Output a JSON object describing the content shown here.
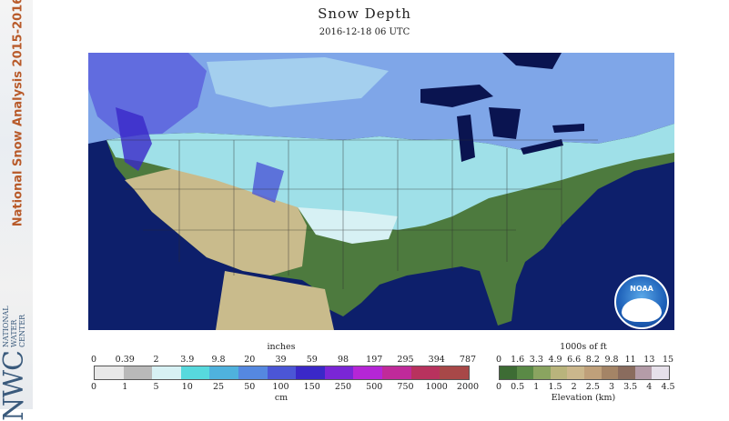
{
  "sidebar": {
    "title": "National Snow Analysis 2015-2016",
    "org_logo": "NWC",
    "org_name_lines": [
      "NATIONAL",
      "WATER",
      "CENTER"
    ]
  },
  "header": {
    "title": "Snow Depth",
    "timestamp": "2016-12-18 06 UTC"
  },
  "map": {
    "region": "Contiguous United States",
    "colors": {
      "ocean": "#0d1f6b",
      "lakes": "#0a1450",
      "snow_light": "#9fe0e8",
      "snow_deep": "#4b56d6",
      "land_green": "#4d7a3e",
      "land_tan": "#c9bb8c"
    }
  },
  "noaa_logo": {
    "label": "NOAA"
  },
  "snow_legend": {
    "inches_title": "inches",
    "inches_ticks": [
      "0",
      "0.39",
      "2",
      "3.9",
      "9.8",
      "20",
      "39",
      "59",
      "98",
      "197",
      "295",
      "394",
      "787"
    ],
    "cm_ticks": [
      "0",
      "1",
      "5",
      "10",
      "25",
      "50",
      "100",
      "150",
      "250",
      "500",
      "750",
      "1000",
      "2000"
    ],
    "cm_title": "cm",
    "colors": [
      "#e8e8e8",
      "#b9b9b9",
      "#d7f1f4",
      "#57d9dd",
      "#4fb2dd",
      "#5588e0",
      "#4b56d6",
      "#3a28c8",
      "#7a26d6",
      "#b526d6",
      "#c02a9a",
      "#b8325e",
      "#a84848"
    ]
  },
  "elevation_legend": {
    "ft_title": "1000s of ft",
    "ft_ticks": [
      "0",
      "1.6",
      "3.3",
      "4.9",
      "6.6",
      "8.2",
      "9.8",
      "11",
      "13",
      "15"
    ],
    "km_ticks": [
      "0",
      "0.5",
      "1",
      "1.5",
      "2",
      "2.5",
      "3",
      "3.5",
      "4",
      "4.5"
    ],
    "km_title": "Elevation (km)",
    "colors": [
      "#3d6c34",
      "#5a8a46",
      "#8aa460",
      "#b9b47c",
      "#cbb78c",
      "#bfa07a",
      "#a48466",
      "#8a6c5e",
      "#b49ca8",
      "#e6e0ea"
    ]
  }
}
